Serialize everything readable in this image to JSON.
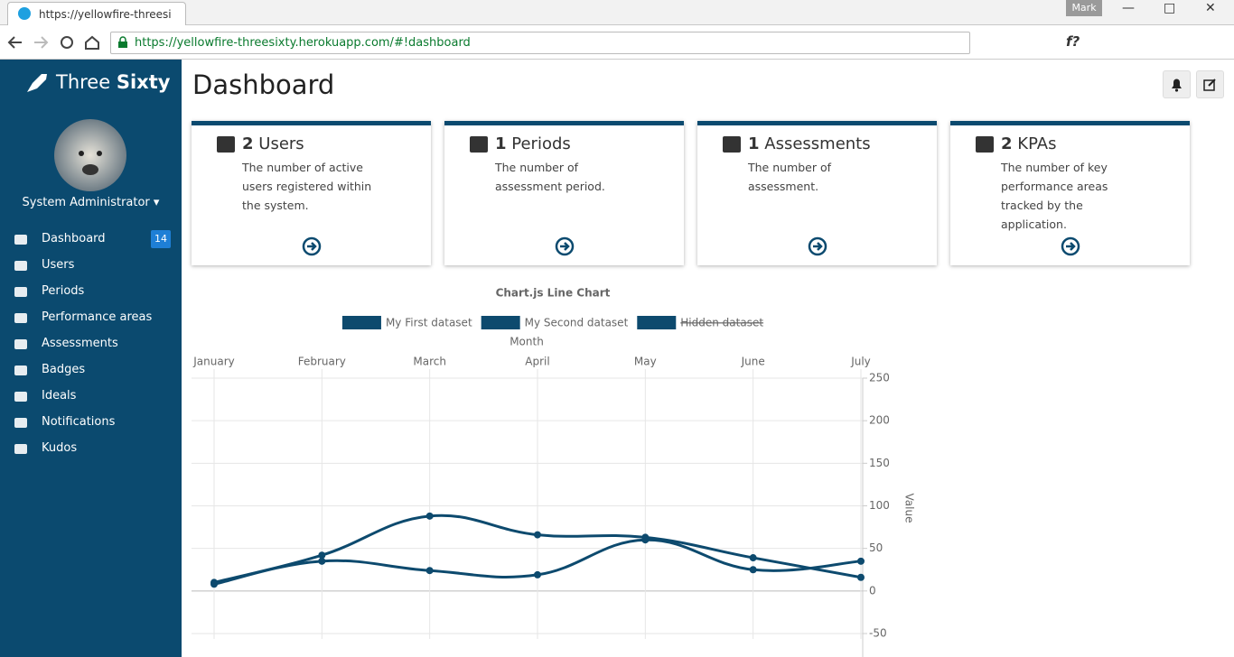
{
  "browser": {
    "tab_title": "https://yellowfire-threesi",
    "url": "https://yellowfire-threesixty.herokuapp.com/#!dashboard",
    "user": "Mark",
    "extension_label": "f?"
  },
  "sidebar": {
    "brand": {
      "light": "Three",
      "bold": "Sixty"
    },
    "user_name": "System Administrator",
    "menu": [
      {
        "label": "Dashboard",
        "badge": "14"
      },
      {
        "label": "Users"
      },
      {
        "label": "Periods"
      },
      {
        "label": "Performance areas"
      },
      {
        "label": "Assessments"
      },
      {
        "label": "Badges"
      },
      {
        "label": "Ideals"
      },
      {
        "label": "Notifications"
      },
      {
        "label": "Kudos"
      }
    ]
  },
  "header": {
    "title": "Dashboard"
  },
  "cards": [
    {
      "count": "2",
      "label": "Users",
      "description": "The number of active users registered within the system."
    },
    {
      "count": "1",
      "label": "Periods",
      "description": "The number of assessment period."
    },
    {
      "count": "1",
      "label": "Assessments",
      "description": "The number of assessment."
    },
    {
      "count": "2",
      "label": "KPAs",
      "description": "The number of key performance areas tracked by the application."
    }
  ],
  "chart_data": {
    "type": "line",
    "title": "Chart.js Line Chart",
    "x_label": "Month",
    "y_label": "Value",
    "categories": [
      "January",
      "February",
      "March",
      "April",
      "May",
      "June",
      "July"
    ],
    "series": [
      {
        "name": "My First dataset",
        "color": "#0d4a6e",
        "values": [
          10,
          42,
          88,
          66,
          63,
          39,
          16
        ]
      },
      {
        "name": "My Second dataset",
        "color": "#0d4a6e",
        "values": [
          8,
          35,
          24,
          19,
          60,
          25,
          35
        ]
      },
      {
        "name": "Hidden dataset",
        "color": "#0d4a6e",
        "hidden": true
      }
    ],
    "ylim": [
      -50,
      250
    ],
    "yticks": [
      -50,
      0,
      50,
      100,
      150,
      200,
      250
    ],
    "grid": true
  }
}
